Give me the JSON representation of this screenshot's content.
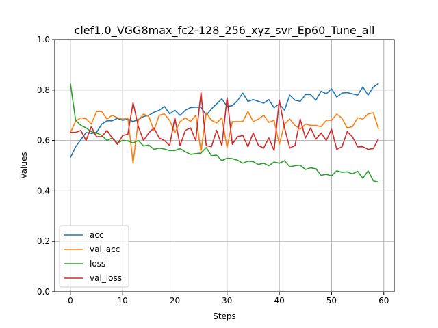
{
  "chart_data": {
    "type": "line",
    "title": "clef1.0_VGG8max_fc2-128_256_xyz_svr_Ep60_Tune_all",
    "xlabel": "Steps",
    "ylabel": "Values",
    "xlim": [
      -3,
      62
    ],
    "ylim": [
      0.0,
      1.0
    ],
    "xticks": [
      0,
      10,
      20,
      30,
      40,
      50,
      60
    ],
    "yticks": [
      0.0,
      0.2,
      0.4,
      0.6,
      0.8,
      1.0
    ],
    "xtick_labels": [
      "0",
      "10",
      "20",
      "30",
      "40",
      "50",
      "60"
    ],
    "ytick_labels": [
      "0.0",
      "0.2",
      "0.4",
      "0.6",
      "0.8",
      "1.0"
    ],
    "grid": true,
    "legend_position": "lower-left",
    "x": [
      0,
      1,
      2,
      3,
      4,
      5,
      6,
      7,
      8,
      9,
      10,
      11,
      12,
      13,
      14,
      15,
      16,
      17,
      18,
      19,
      20,
      21,
      22,
      23,
      24,
      25,
      26,
      27,
      28,
      29,
      30,
      31,
      32,
      33,
      34,
      35,
      36,
      37,
      38,
      39,
      40,
      41,
      42,
      43,
      44,
      45,
      46,
      47,
      48,
      49,
      50,
      51,
      52,
      53,
      54,
      55,
      56,
      57,
      58,
      59
    ],
    "series": [
      {
        "name": "acc",
        "color": "#1f77b4",
        "values": [
          0.532,
          0.575,
          0.603,
          0.632,
          0.628,
          0.632,
          0.665,
          0.678,
          0.678,
          0.688,
          0.68,
          0.685,
          0.675,
          0.683,
          0.695,
          0.7,
          0.712,
          0.72,
          0.735,
          0.706,
          0.72,
          0.7,
          0.72,
          0.73,
          0.732,
          0.732,
          0.7,
          0.725,
          0.745,
          0.765,
          0.735,
          0.738,
          0.758,
          0.788,
          0.755,
          0.762,
          0.755,
          0.748,
          0.762,
          0.73,
          0.745,
          0.72,
          0.78,
          0.76,
          0.755,
          0.782,
          0.782,
          0.76,
          0.795,
          0.785,
          0.805,
          0.772,
          0.788,
          0.79,
          0.785,
          0.78,
          0.812,
          0.78,
          0.812,
          0.826
        ]
      },
      {
        "name": "val_acc",
        "color": "#ff7f0e",
        "values": [
          0.632,
          0.677,
          0.69,
          0.686,
          0.665,
          0.715,
          0.715,
          0.685,
          0.7,
          0.69,
          0.685,
          0.69,
          0.51,
          0.68,
          0.705,
          0.695,
          0.64,
          0.7,
          0.705,
          0.68,
          0.63,
          0.675,
          0.69,
          0.675,
          0.7,
          0.555,
          0.71,
          0.68,
          0.67,
          0.69,
          0.572,
          0.675,
          0.675,
          0.675,
          0.715,
          0.675,
          0.685,
          0.7,
          0.672,
          0.68,
          0.585,
          0.665,
          0.685,
          0.66,
          0.645,
          0.665,
          0.66,
          0.66,
          0.655,
          0.68,
          0.68,
          0.705,
          0.688,
          0.65,
          0.655,
          0.69,
          0.685,
          0.705,
          0.71,
          0.645
        ]
      },
      {
        "name": "loss",
        "color": "#2ca02c",
        "values": [
          0.826,
          0.68,
          0.66,
          0.65,
          0.635,
          0.63,
          0.62,
          0.6,
          0.61,
          0.59,
          0.6,
          0.598,
          0.59,
          0.6,
          0.578,
          0.582,
          0.565,
          0.57,
          0.566,
          0.56,
          0.56,
          0.568,
          0.555,
          0.545,
          0.548,
          0.55,
          0.572,
          0.54,
          0.542,
          0.52,
          0.53,
          0.528,
          0.522,
          0.51,
          0.518,
          0.516,
          0.505,
          0.51,
          0.5,
          0.515,
          0.51,
          0.52,
          0.496,
          0.5,
          0.502,
          0.485,
          0.492,
          0.488,
          0.462,
          0.466,
          0.46,
          0.48,
          0.474,
          0.476,
          0.468,
          0.478,
          0.45,
          0.48,
          0.44,
          0.435
        ]
      },
      {
        "name": "val_loss",
        "color": "#d62728",
        "values": [
          0.632,
          0.632,
          0.64,
          0.6,
          0.655,
          0.615,
          0.615,
          0.64,
          0.61,
          0.585,
          0.62,
          0.625,
          0.75,
          0.655,
          0.6,
          0.63,
          0.65,
          0.61,
          0.6,
          0.58,
          0.69,
          0.58,
          0.64,
          0.65,
          0.6,
          0.79,
          0.58,
          0.575,
          0.64,
          0.58,
          0.77,
          0.585,
          0.615,
          0.62,
          0.575,
          0.63,
          0.58,
          0.57,
          0.61,
          0.56,
          0.76,
          0.65,
          0.57,
          0.58,
          0.685,
          0.61,
          0.65,
          0.605,
          0.63,
          0.6,
          0.645,
          0.565,
          0.575,
          0.635,
          0.615,
          0.575,
          0.575,
          0.565,
          0.568,
          0.608
        ]
      }
    ]
  }
}
